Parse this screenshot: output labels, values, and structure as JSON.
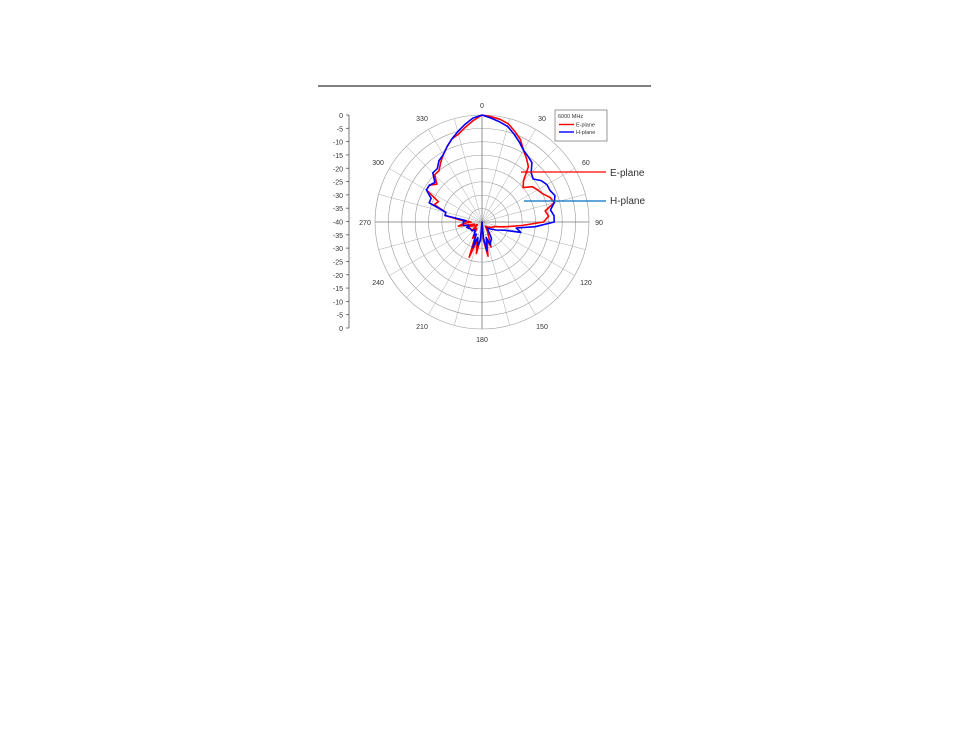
{
  "chart_data": {
    "type": "polar-line",
    "legend_title": "6000 MHz",
    "legend_placement": "top-right",
    "grid": true,
    "radial_axis": {
      "min": -40,
      "max": 0,
      "ticks_upper": [
        "0",
        "-5",
        "-10",
        "-15",
        "-20",
        "-25",
        "-30",
        "-35",
        "-40"
      ],
      "ticks_lower": [
        "-35",
        "-30",
        "-25",
        "-20",
        "-15",
        "-10",
        "-5",
        "0"
      ]
    },
    "angle_labels": [
      "0",
      "30",
      "60",
      "90",
      "120",
      "150",
      "180",
      "210",
      "240",
      "270",
      "300",
      "330"
    ],
    "series": [
      {
        "name": "E-plane",
        "callout": "E-plane",
        "color": "#ff0000",
        "angles": [
          0,
          5,
          10,
          15,
          20,
          25,
          30,
          35,
          40,
          45,
          50,
          55,
          60,
          65,
          70,
          75,
          80,
          85,
          90,
          95,
          100,
          105,
          110,
          120,
          130,
          140,
          150,
          160,
          165,
          170,
          175,
          180,
          185,
          190,
          195,
          200,
          205,
          210,
          220,
          230,
          240,
          250,
          255,
          260,
          265,
          270,
          275,
          280,
          285,
          290,
          295,
          300,
          305,
          310,
          315,
          320,
          325,
          330,
          335,
          340,
          345,
          350,
          355,
          360
        ],
        "values": [
          0,
          -0.5,
          -1,
          -2,
          -4,
          -6,
          -9,
          -11,
          -13,
          -18,
          -20,
          -17,
          -16,
          -15,
          -13,
          -12,
          -16,
          -15,
          -17,
          -25,
          -30,
          -33,
          -35,
          -36,
          -37,
          -38,
          -36,
          -30,
          -33,
          -27,
          -33,
          -40,
          -34,
          -28,
          -33,
          -26,
          -34,
          -33,
          -37,
          -35,
          -38,
          -34,
          -37,
          -31,
          -33,
          -36,
          -32,
          -26,
          -26,
          -21,
          -22,
          -16,
          -16,
          -18,
          -15,
          -15,
          -13,
          -11,
          -9,
          -7,
          -6,
          -4,
          -2,
          0
        ]
      },
      {
        "name": "H-plane",
        "callout": "H-plane",
        "color": "#0000ff",
        "angles": [
          0,
          5,
          10,
          15,
          20,
          25,
          30,
          35,
          40,
          45,
          50,
          55,
          60,
          65,
          70,
          75,
          80,
          85,
          90,
          95,
          100,
          105,
          110,
          120,
          130,
          140,
          150,
          160,
          165,
          170,
          175,
          180,
          185,
          190,
          195,
          200,
          205,
          210,
          220,
          230,
          240,
          250,
          255,
          260,
          265,
          270,
          275,
          280,
          285,
          290,
          295,
          300,
          305,
          310,
          315,
          320,
          325,
          330,
          335,
          340,
          345,
          350,
          355,
          360
        ],
        "values": [
          0,
          -1,
          -2,
          -3,
          -5,
          -7,
          -9,
          -10,
          -11,
          -14,
          -15,
          -13,
          -12,
          -12,
          -11,
          -12,
          -14,
          -13,
          -13,
          -20,
          -27,
          -25,
          -31,
          -34,
          -36,
          -37,
          -33,
          -31,
          -34,
          -29,
          -34,
          -40,
          -33,
          -31,
          -34,
          -30,
          -35,
          -34,
          -36,
          -35,
          -35,
          -34,
          -35,
          -33,
          -33,
          -33,
          -34,
          -26,
          -26,
          -19,
          -19,
          -16,
          -16,
          -17,
          -14,
          -14,
          -12,
          -11,
          -9,
          -7,
          -5,
          -3,
          -1,
          0
        ]
      }
    ]
  }
}
